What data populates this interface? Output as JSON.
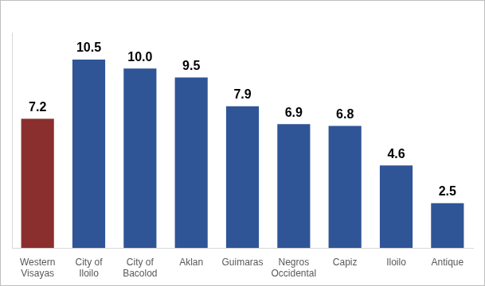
{
  "chart_data": {
    "type": "bar",
    "categories": [
      "Western Visayas",
      "City of Iloilo",
      "City of Bacolod",
      "Aklan",
      "Guimaras",
      "Negros Occidental",
      "Capiz",
      "Iloilo",
      "Antique"
    ],
    "values": [
      7.2,
      10.5,
      10.0,
      9.5,
      7.9,
      6.9,
      6.8,
      4.6,
      2.5
    ],
    "value_labels": [
      "7.2",
      "10.5",
      "10.0",
      "9.5",
      "7.9",
      "6.9",
      "6.8",
      "4.6",
      "2.5"
    ],
    "colors": [
      "#8b2e2e",
      "#2f5597",
      "#2f5597",
      "#2f5597",
      "#2f5597",
      "#2f5597",
      "#2f5597",
      "#2f5597",
      "#2f5597"
    ],
    "ylim": [
      0,
      12
    ],
    "grid": false,
    "data_labels": true,
    "tick_labels": "x"
  }
}
